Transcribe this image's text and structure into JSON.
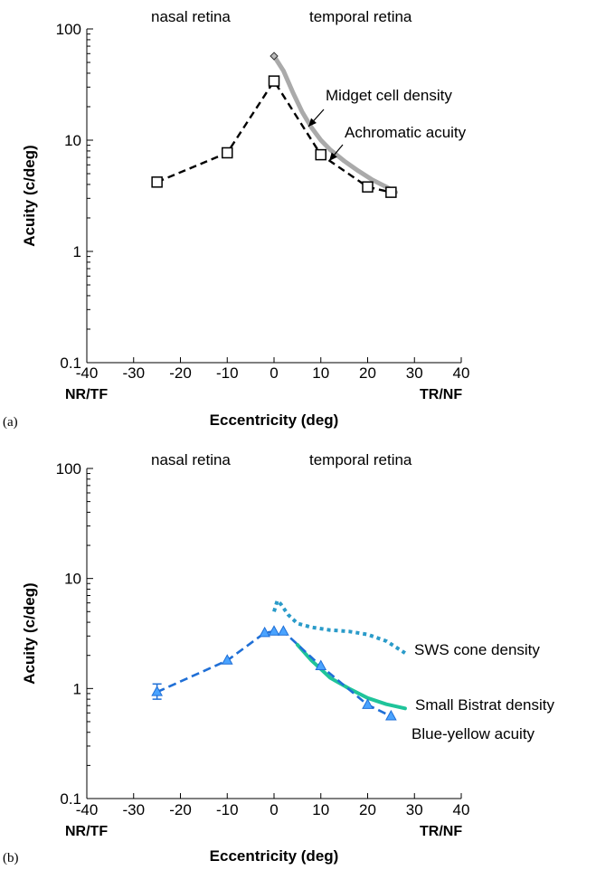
{
  "chart_data": [
    {
      "panel_label": "(a)",
      "type": "line",
      "yscale": "log",
      "xlim": [
        -40,
        40
      ],
      "ylim": [
        0.1,
        100
      ],
      "x_ticks": [
        "-40",
        "-30",
        "-20",
        "-10",
        "0",
        "10",
        "20",
        "30",
        "40"
      ],
      "y_ticks": [
        "0.1",
        "1",
        "10",
        "100"
      ],
      "xlabel": "Eccentricity (deg)",
      "ylabel": "Acuity (c/deg)",
      "x_end_labels": {
        "left": "NR/TF",
        "right": "TR/NF"
      },
      "region_labels": {
        "left": "nasal retina",
        "right": "temporal retina"
      },
      "series": [
        {
          "name": "Achromatic acuity",
          "color": "#000000",
          "marker": "square",
          "x": [
            -25,
            -10,
            0,
            10,
            20,
            25
          ],
          "y": [
            4.2,
            7.7,
            34,
            7.4,
            3.8,
            3.4
          ]
        },
        {
          "name": "Midget cell density",
          "color": "#aaaaaa",
          "x": [
            0,
            2,
            4,
            6,
            8,
            10,
            12,
            15,
            18,
            21,
            24,
            26
          ],
          "y": [
            57,
            42,
            27,
            18,
            13,
            10,
            8.2,
            6.5,
            5.3,
            4.4,
            3.8,
            3.4
          ]
        }
      ],
      "annotations": [
        {
          "text": "Midget cell density",
          "arrow_to": [
            8,
            13
          ]
        },
        {
          "text": "Achromatic acuity",
          "arrow_to": [
            12,
            7
          ]
        }
      ]
    },
    {
      "panel_label": "(b)",
      "type": "line",
      "yscale": "log",
      "xlim": [
        -40,
        40
      ],
      "ylim": [
        0.1,
        100
      ],
      "x_ticks": [
        "-40",
        "-30",
        "-20",
        "-10",
        "0",
        "10",
        "20",
        "30",
        "40"
      ],
      "y_ticks": [
        "0.1",
        "1",
        "10",
        "100"
      ],
      "xlabel": "Eccentricity (deg)",
      "ylabel": "Acuity (c/deg)",
      "x_end_labels": {
        "left": "NR/TF",
        "right": "TR/NF"
      },
      "region_labels": {
        "left": "nasal retina",
        "right": "temporal retina"
      },
      "series": [
        {
          "name": "Blue-yellow acuity",
          "color": "#1f6fd6",
          "marker": "triangle",
          "x": [
            -25,
            -10,
            -2,
            0,
            2,
            10,
            20,
            25
          ],
          "y": [
            0.93,
            1.8,
            3.2,
            3.3,
            3.3,
            1.6,
            0.71,
            0.56
          ],
          "error_bar": {
            "x": -25,
            "low": 0.8,
            "high": 1.1
          }
        },
        {
          "name": "SWS cone density",
          "color": "#2a9bc9",
          "x": [
            0,
            0.7,
            1.5,
            3,
            5,
            8,
            12,
            16,
            20,
            24,
            28
          ],
          "y": [
            5.0,
            6.3,
            5.8,
            4.7,
            3.9,
            3.6,
            3.4,
            3.3,
            3.1,
            2.7,
            2.1
          ]
        },
        {
          "name": "Small Bistrat density",
          "color": "#1fc49a",
          "x": [
            5,
            8,
            10,
            12,
            16,
            20,
            24,
            28
          ],
          "y": [
            2.5,
            1.8,
            1.5,
            1.25,
            1.0,
            0.82,
            0.72,
            0.66
          ]
        }
      ],
      "annotations": [
        {
          "text": "SWS cone density"
        },
        {
          "text": "Small Bistrat density"
        },
        {
          "text": "Blue-yellow acuity"
        }
      ]
    }
  ]
}
